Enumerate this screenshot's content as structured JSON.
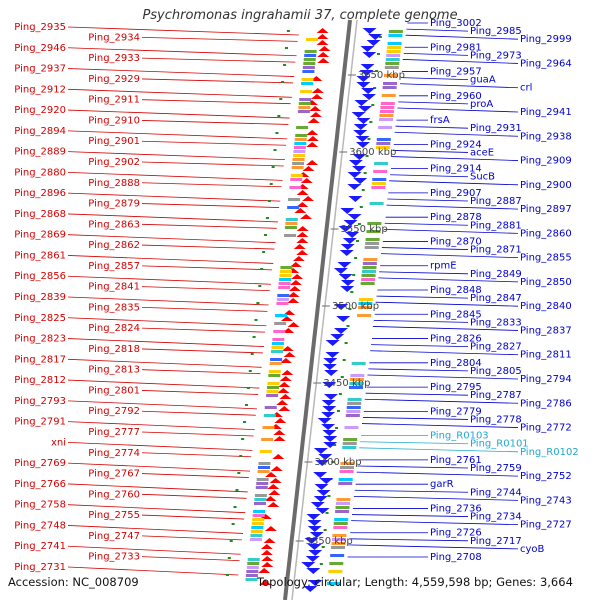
{
  "title": "Psychromonas ingrahamii 37, complete genome",
  "accession": "Accession: NC_008709",
  "topology": "Topology: circular; Length: 4,559,598 bp; Genes: 3,664",
  "colors": {
    "left_label": "#d40000",
    "right_label": "#0000cc",
    "rna_label": "#20a8d0",
    "ruler": "#6b6b6b",
    "tick": "#1e8c1e",
    "forward_feature": "#ff0000",
    "reverse_feature": "#1a1aff"
  },
  "kbp_marks": [
    {
      "label": "3650 kbp"
    },
    {
      "label": "3600 kbp"
    },
    {
      "label": "3550 kbp"
    },
    {
      "label": "3500 kbp"
    },
    {
      "label": "3450 kbp"
    },
    {
      "label": "3400 kbp"
    },
    {
      "label": "3350 kbp"
    }
  ],
  "left_labels": [
    "Ping_2935",
    "Ping_2934",
    "Ping_2946",
    "Ping_2933",
    "Ping_2937",
    "Ping_2929",
    "Ping_2912",
    "Ping_2911",
    "Ping_2920",
    "Ping_2910",
    "Ping_2894",
    "Ping_2901",
    "Ping_2889",
    "Ping_2902",
    "Ping_2880",
    "Ping_2888",
    "Ping_2896",
    "Ping_2879",
    "Ping_2868",
    "Ping_2863",
    "Ping_2869",
    "Ping_2862",
    "Ping_2861",
    "Ping_2857",
    "Ping_2856",
    "Ping_2841",
    "Ping_2839",
    "Ping_2835",
    "Ping_2825",
    "Ping_2824",
    "Ping_2823",
    "Ping_2818",
    "Ping_2817",
    "Ping_2813",
    "Ping_2812",
    "Ping_2801",
    "Ping_2793",
    "Ping_2792",
    "Ping_2791",
    "Ping_2777",
    "xni",
    "Ping_2774",
    "Ping_2769",
    "Ping_2767",
    "Ping_2766",
    "Ping_2760",
    "Ping_2758",
    "Ping_2755",
    "Ping_2748",
    "Ping_2747",
    "Ping_2741",
    "Ping_2733",
    "Ping_2731"
  ],
  "right_labels": [
    "Ping_3002",
    "Ping_2985",
    "Ping_2999",
    "Ping_2981",
    "Ping_2973",
    "Ping_2964",
    "Ping_2957",
    "guaA",
    "crl",
    "Ping_2960",
    "proA",
    "Ping_2941",
    "frsA",
    "Ping_2931",
    "Ping_2938",
    "Ping_2924",
    "aceE",
    "Ping_2909",
    "Ping_2914",
    "SucB",
    "Ping_2900",
    "Ping_2907",
    "Ping_2887",
    "Ping_2897",
    "Ping_2878",
    "Ping_2881",
    "Ping_2860",
    "Ping_2870",
    "Ping_2871",
    "Ping_2855",
    "rpmE",
    "Ping_2849",
    "Ping_2850",
    "Ping_2848",
    "Ping_2847",
    "Ping_2840",
    "Ping_2845",
    "Ping_2833",
    "Ping_2837",
    "Ping_2826",
    "Ping_2827",
    "Ping_2811",
    "Ping_2804",
    "Ping_2805",
    "Ping_2794",
    "Ping_2795",
    "Ping_2787",
    "Ping_2786",
    "Ping_2779",
    "Ping_2778",
    "Ping_2772",
    "Ping_R0103",
    "Ping_R0101",
    "Ping_R0102",
    "Ping_2761",
    "Ping_2759",
    "Ping_2752",
    "garR",
    "Ping_2744",
    "Ping_2743",
    "Ping_2736",
    "Ping_2734",
    "Ping_2727",
    "Ping_2726",
    "Ping_2717",
    "cyoB",
    "Ping_2708"
  ],
  "rna_labels": [
    "Ping_R0103",
    "Ping_R0101",
    "Ping_R0102"
  ]
}
